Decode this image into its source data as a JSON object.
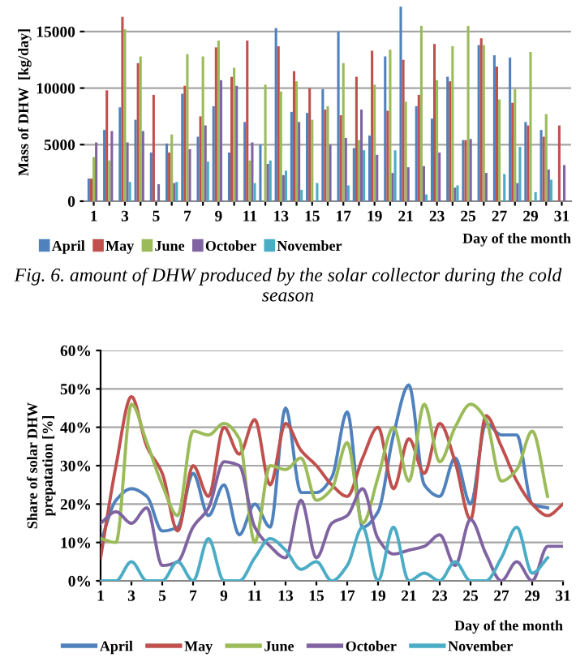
{
  "chart_data": [
    {
      "type": "bar",
      "ylabel": "Mass of DHW  [kg/day]",
      "xlabel": "Day of the month",
      "categories": [
        "1",
        null,
        "3",
        null,
        "5",
        null,
        "7",
        null,
        "9",
        null,
        "11",
        null,
        "13",
        null,
        "15",
        null,
        "17",
        null,
        "19",
        null,
        "21",
        null,
        "23",
        null,
        "25",
        null,
        "27",
        null,
        "29",
        null,
        "31"
      ],
      "series": [
        {
          "name": "April",
          "color": "#4f81bd",
          "values": [
            2000,
            6300,
            8300,
            7200,
            4300,
            5100,
            9500,
            5700,
            8400,
            4300,
            7000,
            5000,
            15300,
            7900,
            7800,
            9900,
            15000,
            4700,
            5800,
            12800,
            17200,
            8400,
            7300,
            11000,
            5400,
            13800,
            12900,
            12700,
            7000,
            6300,
            null
          ]
        },
        {
          "name": "May",
          "color": "#c0504d",
          "values": [
            2000,
            9800,
            16300,
            12200,
            9400,
            4300,
            10200,
            7500,
            13600,
            11000,
            14200,
            0,
            13700,
            11500,
            10000,
            8100,
            7600,
            11000,
            13300,
            8000,
            12500,
            9400,
            13900,
            10600,
            5400,
            14400,
            11900,
            8700,
            6700,
            5700,
            6700
          ]
        },
        {
          "name": "June",
          "color": "#9bbb59",
          "values": [
            3900,
            3600,
            15200,
            12800,
            0,
            5900,
            13000,
            12800,
            14200,
            11800,
            3600,
            10300,
            9700,
            10600,
            7200,
            8400,
            12200,
            5400,
            10300,
            13400,
            8800,
            15500,
            10700,
            13700,
            15500,
            13800,
            9000,
            9900,
            13200,
            7700,
            null
          ]
        },
        {
          "name": "October",
          "color": "#8064a2",
          "values": [
            5200,
            6200,
            5200,
            6200,
            1500,
            1600,
            4600,
            6700,
            10700,
            10200,
            5200,
            3300,
            2300,
            7000,
            0,
            5000,
            5600,
            8100,
            4100,
            2500,
            3000,
            3100,
            4300,
            1200,
            5500,
            2500,
            0,
            1600,
            0,
            2800,
            3200
          ]
        },
        {
          "name": "November",
          "color": "#4bacc6",
          "values": [
            0,
            0,
            1700,
            0,
            0,
            1700,
            0,
            3500,
            0,
            0,
            1600,
            3600,
            2700,
            1000,
            1600,
            0,
            1400,
            4500,
            0,
            4500,
            0,
            600,
            0,
            1400,
            0,
            0,
            2400,
            4800,
            800,
            1900,
            null
          ]
        }
      ],
      "ylim": [
        0,
        17500
      ],
      "yticks": [
        0,
        5000,
        10000,
        15000
      ],
      "grid": "y",
      "legend": "bottom left",
      "annotations": [
        "Fig. 6. amount of DHW produced by the solar collector during the cold season"
      ]
    },
    {
      "type": "line",
      "ylabel": "Share of solar DHW\nprepatation [%]",
      "xlabel": "Day of the month",
      "x": [
        1,
        2,
        3,
        4,
        5,
        6,
        7,
        8,
        9,
        10,
        11,
        12,
        13,
        14,
        15,
        16,
        17,
        18,
        19,
        20,
        21,
        22,
        23,
        24,
        25,
        26,
        27,
        28,
        29,
        30,
        31
      ],
      "series": [
        {
          "name": "April",
          "color": "#4f81bd",
          "values": [
            10,
            21,
            24,
            22,
            13,
            14,
            28,
            17,
            25,
            12,
            20,
            14,
            45,
            23,
            23,
            27,
            44,
            14,
            18,
            38,
            51,
            25,
            22,
            32,
            20,
            41,
            38,
            38,
            20,
            19,
            null
          ]
        },
        {
          "name": "May",
          "color": "#c0504d",
          "values": [
            6,
            30,
            48,
            35,
            28,
            13,
            30,
            22,
            40,
            33,
            42,
            25,
            41,
            34,
            30,
            25,
            22,
            32,
            40,
            24,
            37,
            28,
            41,
            31,
            16,
            43,
            35,
            26,
            20,
            17,
            20
          ]
        },
        {
          "name": "June",
          "color": "#9bbb59",
          "values": [
            11,
            10,
            46,
            36,
            25,
            17,
            39,
            38,
            41,
            37,
            10,
            30,
            29,
            32,
            21,
            24,
            36,
            15,
            27,
            40,
            26,
            46,
            31,
            40,
            46,
            42,
            26,
            29,
            39,
            22,
            null
          ]
        },
        {
          "name": "October",
          "color": "#8064a2",
          "values": [
            15,
            18,
            15,
            19,
            4,
            5,
            14,
            19,
            31,
            30,
            14,
            9,
            6,
            21,
            6,
            15,
            17,
            24,
            11,
            7,
            8,
            9,
            12,
            4,
            16,
            7,
            0,
            5,
            0,
            9,
            9
          ]
        },
        {
          "name": "November",
          "color": "#4bacc6",
          "values": [
            0,
            0,
            5,
            0,
            0,
            5,
            0,
            11,
            0,
            0,
            6,
            11,
            8,
            3,
            5,
            0,
            4,
            14,
            0,
            14,
            0,
            2,
            0,
            5,
            0,
            0,
            6,
            14,
            2,
            6,
            null
          ]
        }
      ],
      "xlim": [
        1,
        31
      ],
      "xticks": [
        1,
        3,
        5,
        7,
        9,
        11,
        13,
        15,
        17,
        19,
        21,
        23,
        25,
        27,
        29,
        31
      ],
      "ylim": [
        0,
        60
      ],
      "yticks": [
        {
          "value": 0,
          "label": "0%"
        },
        {
          "value": 10,
          "label": "10%"
        },
        {
          "value": 20,
          "label": "20%"
        },
        {
          "value": 30,
          "label": "30%"
        },
        {
          "value": 40,
          "label": "40%"
        },
        {
          "value": 50,
          "label": "50%"
        },
        {
          "value": 60,
          "label": "60%"
        }
      ],
      "grid": "y",
      "legend": "bottom",
      "line_style": "solid",
      "marker": "none"
    }
  ]
}
